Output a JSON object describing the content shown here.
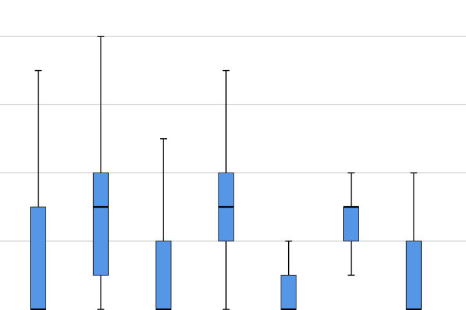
{
  "chart_data": {
    "type": "boxplot",
    "title": "",
    "xlabel": "",
    "ylabel": "",
    "ylim": [
      0,
      4
    ],
    "grid": true,
    "box_color": "#5596E6",
    "line_color": "#000000",
    "grid_color": "#C8C8C8",
    "series": [
      {
        "min": 0,
        "q1": 0,
        "median": 0,
        "q3": 1.5,
        "max": 3.5
      },
      {
        "min": 0,
        "q1": 0.5,
        "median": 1.5,
        "q3": 2,
        "max": 4
      },
      {
        "min": 0,
        "q1": 0,
        "median": 0,
        "q3": 1,
        "max": 2.5
      },
      {
        "min": 0,
        "q1": 1,
        "median": 1.5,
        "q3": 2,
        "max": 3.5
      },
      {
        "min": 0,
        "q1": 0,
        "median": 0,
        "q3": 0.5,
        "max": 1
      },
      {
        "min": 0.5,
        "q1": 1,
        "median": 1.5,
        "q3": 1.5,
        "max": 2
      },
      {
        "min": 0,
        "q1": 0,
        "median": 0,
        "q3": 1,
        "max": 2
      }
    ]
  }
}
